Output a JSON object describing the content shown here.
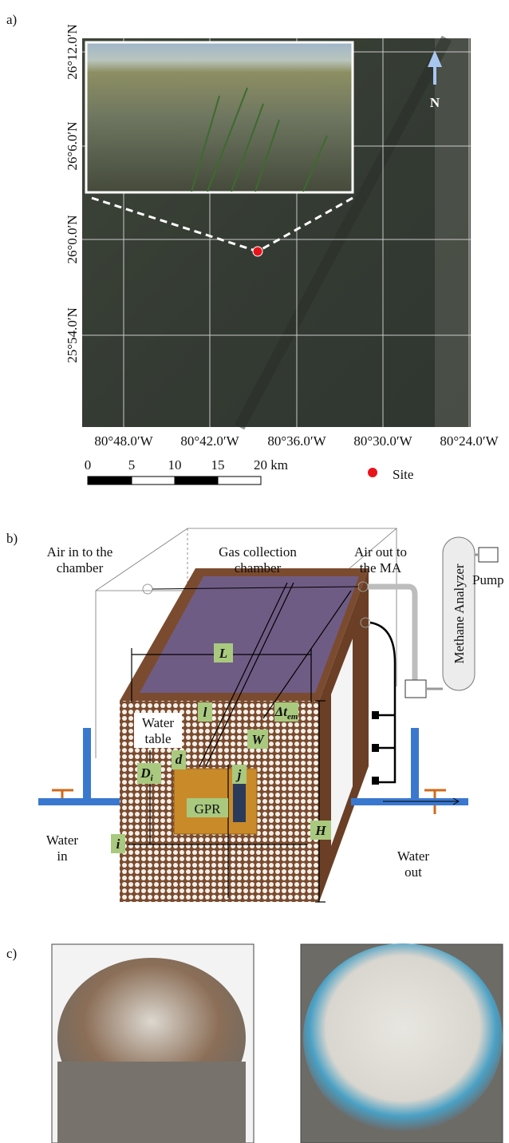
{
  "panel_a": {
    "label": "a)",
    "lat_labels": [
      "26°12.0′N",
      "26°6.0′N",
      "26°0.0′N",
      "25°54.0′N"
    ],
    "lon_labels": [
      "80°48.0′W",
      "80°42.0′W",
      "80°36.0′W",
      "80°30.0′W",
      "80°24.0′W"
    ],
    "north": "N",
    "scale_labels": [
      "0",
      "5",
      "10",
      "15",
      "20 km"
    ],
    "legend": "Site"
  },
  "panel_b": {
    "label": "b)",
    "air_in": [
      "Air in to the",
      "chamber"
    ],
    "gas_chamber": [
      "Gas collection",
      "chamber"
    ],
    "air_out": [
      "Air out to",
      "the MA"
    ],
    "analyzer": "Methane Analyzer",
    "pump": "Pump",
    "dim_L": "L",
    "dim_dt": {
      "main": "Δt",
      "sub": "em"
    },
    "dim_l": "l",
    "dim_W": "W",
    "water_table": [
      "Water",
      "table"
    ],
    "dim_d": "d",
    "dim_D": {
      "main": "D",
      "sub": "i"
    },
    "dim_j": "j",
    "gpr": "GPR",
    "dim_H": "H",
    "dim_i": "i",
    "water_in": [
      "Water",
      "in"
    ],
    "water_out": [
      "Water",
      "out"
    ]
  },
  "panel_c": {
    "label": "c)"
  }
}
